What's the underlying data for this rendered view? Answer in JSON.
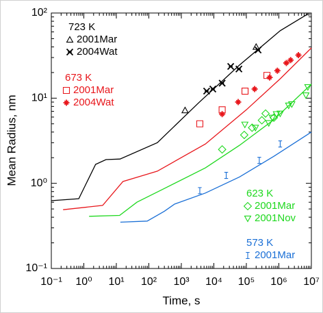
{
  "chart_data": {
    "type": "line",
    "x_label": "Time, s",
    "y_label": "Mean Radius, nm",
    "log_x": true,
    "log_y": true,
    "xlim": [
      0.1,
      10000000
    ],
    "ylim": [
      0.1,
      100
    ],
    "xticks": [
      {
        "value": 0.1,
        "label": "10⁻¹"
      },
      {
        "value": 1,
        "label": "10⁰"
      },
      {
        "value": 10,
        "label": "10¹"
      },
      {
        "value": 100,
        "label": "10²"
      },
      {
        "value": 1000,
        "label": "10³"
      },
      {
        "value": 10000,
        "label": "10⁴"
      },
      {
        "value": 100000,
        "label": "10⁵"
      },
      {
        "value": 1000000,
        "label": "10⁶"
      },
      {
        "value": 10000000,
        "label": "10⁷"
      }
    ],
    "yticks": [
      {
        "value": 0.1,
        "label": "10⁻¹"
      },
      {
        "value": 1,
        "label": "10⁰"
      },
      {
        "value": 10,
        "label": "10¹"
      },
      {
        "value": 100,
        "label": "10²"
      }
    ],
    "groups": [
      {
        "title": "723 K",
        "color": "#000000",
        "curve": {
          "x": [
            0.1,
            0.7,
            2.3,
            4.8,
            13,
            182,
            3400,
            62000,
            1100000,
            8000000
          ],
          "y": [
            0.625,
            0.66,
            1.67,
            1.9,
            1.93,
            3.0,
            8.8,
            24.5,
            62,
            98
          ]
        },
        "series": [
          {
            "name": "2001Mar",
            "marker": "triangle-up",
            "x": [
              1300,
              200000
            ],
            "y": [
              7.2,
              40
            ]
          },
          {
            "name": "2004Wat",
            "marker": "x-star",
            "x": [
              6000,
              9300,
              18000,
              33000,
              59000,
              230000
            ],
            "y": [
              12.1,
              12.8,
              15,
              23.6,
              22,
              36.8
            ]
          }
        ]
      },
      {
        "title": "673 K",
        "color": "#e8161b",
        "curve": {
          "x": [
            0.23,
            3.8,
            16,
            182,
            5500,
            100000,
            1100000,
            10000000
          ],
          "y": [
            0.49,
            0.55,
            1.05,
            1.39,
            2.9,
            7.3,
            16.9,
            38.9
          ]
        },
        "series": [
          {
            "name": "2001Mar",
            "marker": "square",
            "x": [
              3700,
              18000,
              91000,
              430000
            ],
            "y": [
              5.0,
              7.3,
              12.1,
              18.5
            ]
          },
          {
            "name": "2004Wat",
            "marker": "plus-star",
            "x": [
              18000,
              56000,
              180000,
              520000,
              900000,
              1700000,
              2300000,
              4000000
            ],
            "y": [
              6.5,
              9.0,
              12.8,
              17.5,
              21,
              25.9,
              28,
              32
            ]
          }
        ]
      },
      {
        "title": "623 K",
        "color": "#1ed81e",
        "curve": {
          "x": [
            1.45,
            12.6,
            43,
            300,
            5500,
            62000,
            710000,
            10000000
          ],
          "y": [
            0.41,
            0.42,
            0.6,
            0.87,
            1.52,
            2.8,
            5.6,
            14.6
          ]
        },
        "series": [
          {
            "name": "2001Mar",
            "marker": "diamond",
            "x": [
              18000,
              86000,
              150000,
              300000,
              390000,
              700000
            ],
            "y": [
              2.5,
              3.7,
              4.5,
              5.5,
              6.6,
              5.9
            ]
          },
          {
            "name": "2001Nov",
            "marker": "triangle-down",
            "x": [
              90000,
              190000,
              490000,
              630000,
              840000,
              1100000,
              2000000,
              2500000,
              6800000,
              7800000
            ],
            "y": [
              4.9,
              4.5,
              5.1,
              5.9,
              6.5,
              6.6,
              8.2,
              8.5,
              10.8,
              13.5
            ]
          }
        ]
      },
      {
        "title": "573 K",
        "color": "#1a6fd6",
        "curve": {
          "x": [
            13.3,
            89,
            300,
            620,
            5500,
            62000,
            710000,
            10000000
          ],
          "y": [
            0.35,
            0.36,
            0.47,
            0.57,
            0.77,
            1.19,
            2.08,
            4.0
          ]
        },
        "series": [
          {
            "name": "2001Mar",
            "marker": "i-beam",
            "x": [
              3700,
              24000,
              250000,
              1100000
            ],
            "y": [
              0.82,
              1.24,
              1.86,
              2.9
            ]
          }
        ]
      }
    ]
  }
}
